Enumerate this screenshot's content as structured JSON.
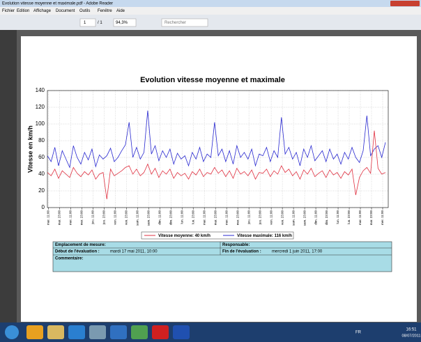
{
  "window": {
    "title": "Evolution vitesse moyenne et maximale.pdf - Adobe Reader",
    "menu": [
      "Fichier",
      "Edition",
      "Affichage",
      "Document",
      "Outils",
      "Fenêtre",
      "Aide"
    ],
    "toolbar": {
      "page": "1",
      "pages": "/ 1",
      "zoom": "94,3%",
      "search": "Rechercher"
    },
    "taskbar": {
      "lang": "FR",
      "time": "16:51",
      "date": "08/07/2011"
    }
  },
  "chart_data": {
    "type": "line",
    "title": "Evolution vitesse moyenne et maximale",
    "y_label": "Vitesse en  km/h",
    "xlim": [
      0,
      367
    ],
    "ylim": [
      0,
      140
    ],
    "yticks": [
      0,
      20,
      40,
      60,
      80,
      100,
      120,
      140
    ],
    "grid": true,
    "xticks": [
      {
        "value": 1,
        "label": "mar. 11:00"
      },
      {
        "value": 13,
        "label": "mar. 23:00"
      },
      {
        "value": 25,
        "label": "mer. 11:00"
      },
      {
        "value": 37,
        "label": "mer. 23:00"
      },
      {
        "value": 49,
        "label": "jeu. 11:00"
      },
      {
        "value": 61,
        "label": "jeu. 23:00"
      },
      {
        "value": 73,
        "label": "ven. 11:00"
      },
      {
        "value": 85,
        "label": "ven. 23:00"
      },
      {
        "value": 97,
        "label": "sam. 11:00"
      },
      {
        "value": 109,
        "label": "sam. 23:00"
      },
      {
        "value": 121,
        "label": "dim. 11:00"
      },
      {
        "value": 133,
        "label": "dim. 23:00"
      },
      {
        "value": 145,
        "label": "lun. 11:00"
      },
      {
        "value": 157,
        "label": "lun. 23:00"
      },
      {
        "value": 169,
        "label": "mar. 11:00"
      },
      {
        "value": 181,
        "label": "mar. 23:00"
      },
      {
        "value": 193,
        "label": "mer. 11:00"
      },
      {
        "value": 205,
        "label": "mer. 23:00"
      },
      {
        "value": 217,
        "label": "jeu. 11:00"
      },
      {
        "value": 229,
        "label": "jeu. 23:00"
      },
      {
        "value": 241,
        "label": "ven. 11:00"
      },
      {
        "value": 253,
        "label": "ven. 23:00"
      },
      {
        "value": 265,
        "label": "sam. 11:00"
      },
      {
        "value": 277,
        "label": "sam. 23:00"
      },
      {
        "value": 289,
        "label": "dim. 11:00"
      },
      {
        "value": 301,
        "label": "dim. 23:00"
      },
      {
        "value": 313,
        "label": "lun. 11:00"
      },
      {
        "value": 325,
        "label": "lun. 23:00"
      },
      {
        "value": 337,
        "label": "mar. 11:00"
      },
      {
        "value": 349,
        "label": "mar. 23:00"
      },
      {
        "value": 361,
        "label": "mer. 11:00"
      }
    ],
    "x": [
      0,
      4,
      8,
      12,
      16,
      20,
      24,
      28,
      32,
      36,
      40,
      44,
      48,
      52,
      56,
      60,
      64,
      68,
      72,
      76,
      80,
      84,
      88,
      92,
      96,
      100,
      104,
      108,
      112,
      116,
      120,
      124,
      128,
      132,
      136,
      140,
      144,
      148,
      152,
      156,
      160,
      164,
      168,
      172,
      176,
      180,
      184,
      188,
      192,
      196,
      200,
      204,
      208,
      212,
      216,
      220,
      224,
      228,
      232,
      236,
      240,
      244,
      248,
      252,
      256,
      260,
      264,
      268,
      272,
      276,
      280,
      284,
      288,
      292,
      296,
      300,
      304,
      308,
      312,
      316,
      320,
      324,
      328,
      332,
      336,
      340,
      344,
      348,
      352,
      356,
      360,
      364
    ],
    "series": [
      {
        "name": "Vitesse moyenne: 40 km/h",
        "color": "#e03040",
        "values": [
          42,
          38,
          46,
          35,
          44,
          40,
          36,
          48,
          41,
          37,
          43,
          39,
          45,
          34,
          40,
          42,
          10,
          46,
          38,
          41,
          44,
          48,
          50,
          40,
          46,
          38,
          42,
          52,
          40,
          47,
          36,
          44,
          40,
          46,
          35,
          42,
          38,
          41,
          34,
          43,
          39,
          46,
          37,
          42,
          40,
          48,
          41,
          45,
          37,
          44,
          35,
          47,
          40,
          43,
          38,
          45,
          34,
          42,
          41,
          46,
          37,
          44,
          40,
          50,
          42,
          46,
          38,
          43,
          34,
          45,
          40,
          47,
          37,
          41,
          44,
          36,
          45,
          39,
          42,
          35,
          43,
          39,
          46,
          15,
          36,
          44,
          48,
          41,
          92,
          47,
          40,
          42
        ]
      },
      {
        "name": "Vitesse maximale: 116 km/h",
        "color": "#2828d0",
        "values": [
          62,
          55,
          72,
          50,
          68,
          58,
          48,
          74,
          60,
          52,
          66,
          57,
          70,
          49,
          63,
          58,
          62,
          71,
          55,
          60,
          68,
          75,
          102,
          60,
          72,
          58,
          66,
          116,
          64,
          74,
          56,
          68,
          60,
          70,
          52,
          65,
          58,
          62,
          50,
          66,
          58,
          72,
          55,
          64,
          60,
          102,
          62,
          70,
          55,
          68,
          52,
          74,
          60,
          66,
          58,
          70,
          50,
          64,
          62,
          72,
          55,
          68,
          60,
          108,
          64,
          72,
          58,
          66,
          50,
          70,
          60,
          74,
          56,
          62,
          68,
          55,
          70,
          58,
          64,
          52,
          66,
          58,
          72,
          60,
          54,
          68,
          110,
          62,
          70,
          74,
          60,
          78
        ]
      }
    ]
  },
  "info": {
    "location_label": "Emplacement de mesure:",
    "responsible_label": "Responsable:",
    "start_label": "Début de l'évaluation :",
    "start_value": "mardi 17 mai 2011, 10:00",
    "end_label": "Fin de l'évaluation :",
    "end_value": "mercredi 1 juin 2011, 17:00",
    "comment_label": "Commentaire:"
  }
}
